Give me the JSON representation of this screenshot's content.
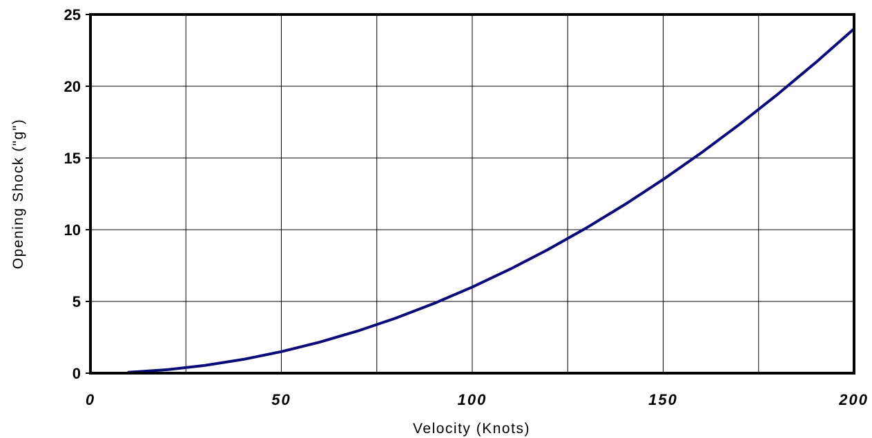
{
  "chart_data": {
    "type": "line",
    "title": "",
    "xlabel": "Velocity (Knots)",
    "ylabel": "Opening Shock (\"g\")",
    "xlim": [
      0,
      200
    ],
    "ylim": [
      0,
      25
    ],
    "x_ticks": [
      0,
      50,
      100,
      150,
      200
    ],
    "x_tick_labels": [
      "0",
      "50",
      "100",
      "150",
      "200"
    ],
    "y_ticks": [
      0,
      5,
      10,
      15,
      20,
      25
    ],
    "y_tick_labels": [
      "0",
      "5",
      "10",
      "15",
      "20",
      "25"
    ],
    "x_grid": [
      0,
      25,
      50,
      75,
      100,
      125,
      150,
      175,
      200
    ],
    "y_grid": [
      0,
      5,
      10,
      15,
      20,
      25
    ],
    "grid": true,
    "legend": "none",
    "series": [
      {
        "color": "#0a0a78",
        "x": [
          10,
          20,
          30,
          40,
          50,
          60,
          70,
          80,
          90,
          100,
          110,
          120,
          130,
          140,
          150,
          160,
          170,
          180,
          190,
          200
        ],
        "y": [
          0.06,
          0.24,
          0.54,
          0.96,
          1.5,
          2.16,
          2.94,
          3.84,
          4.86,
          6.0,
          7.26,
          8.64,
          10.14,
          11.76,
          13.5,
          15.36,
          17.34,
          19.44,
          21.66,
          24.0
        ]
      }
    ]
  }
}
